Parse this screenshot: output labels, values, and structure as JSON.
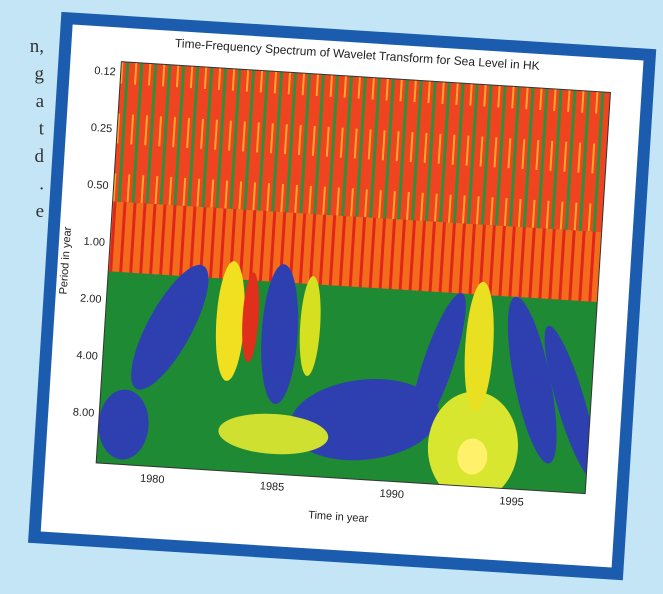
{
  "page_text": {
    "fragments": [
      "n,",
      "g",
      "a",
      "t",
      "d",
      ".",
      "e"
    ]
  },
  "figure": {
    "title": "Time-Frequency Spectrum of Wavelet Transform for Sea Level in HK",
    "y_label": "Period in year",
    "x_label": "Time in year",
    "y_ticks": [
      "0.12",
      "0.25",
      "0.50",
      "1.00",
      "2.00",
      "4.00",
      "8.00"
    ],
    "x_ticks": [
      "1980",
      "1985",
      "1990",
      "1995"
    ]
  }
}
